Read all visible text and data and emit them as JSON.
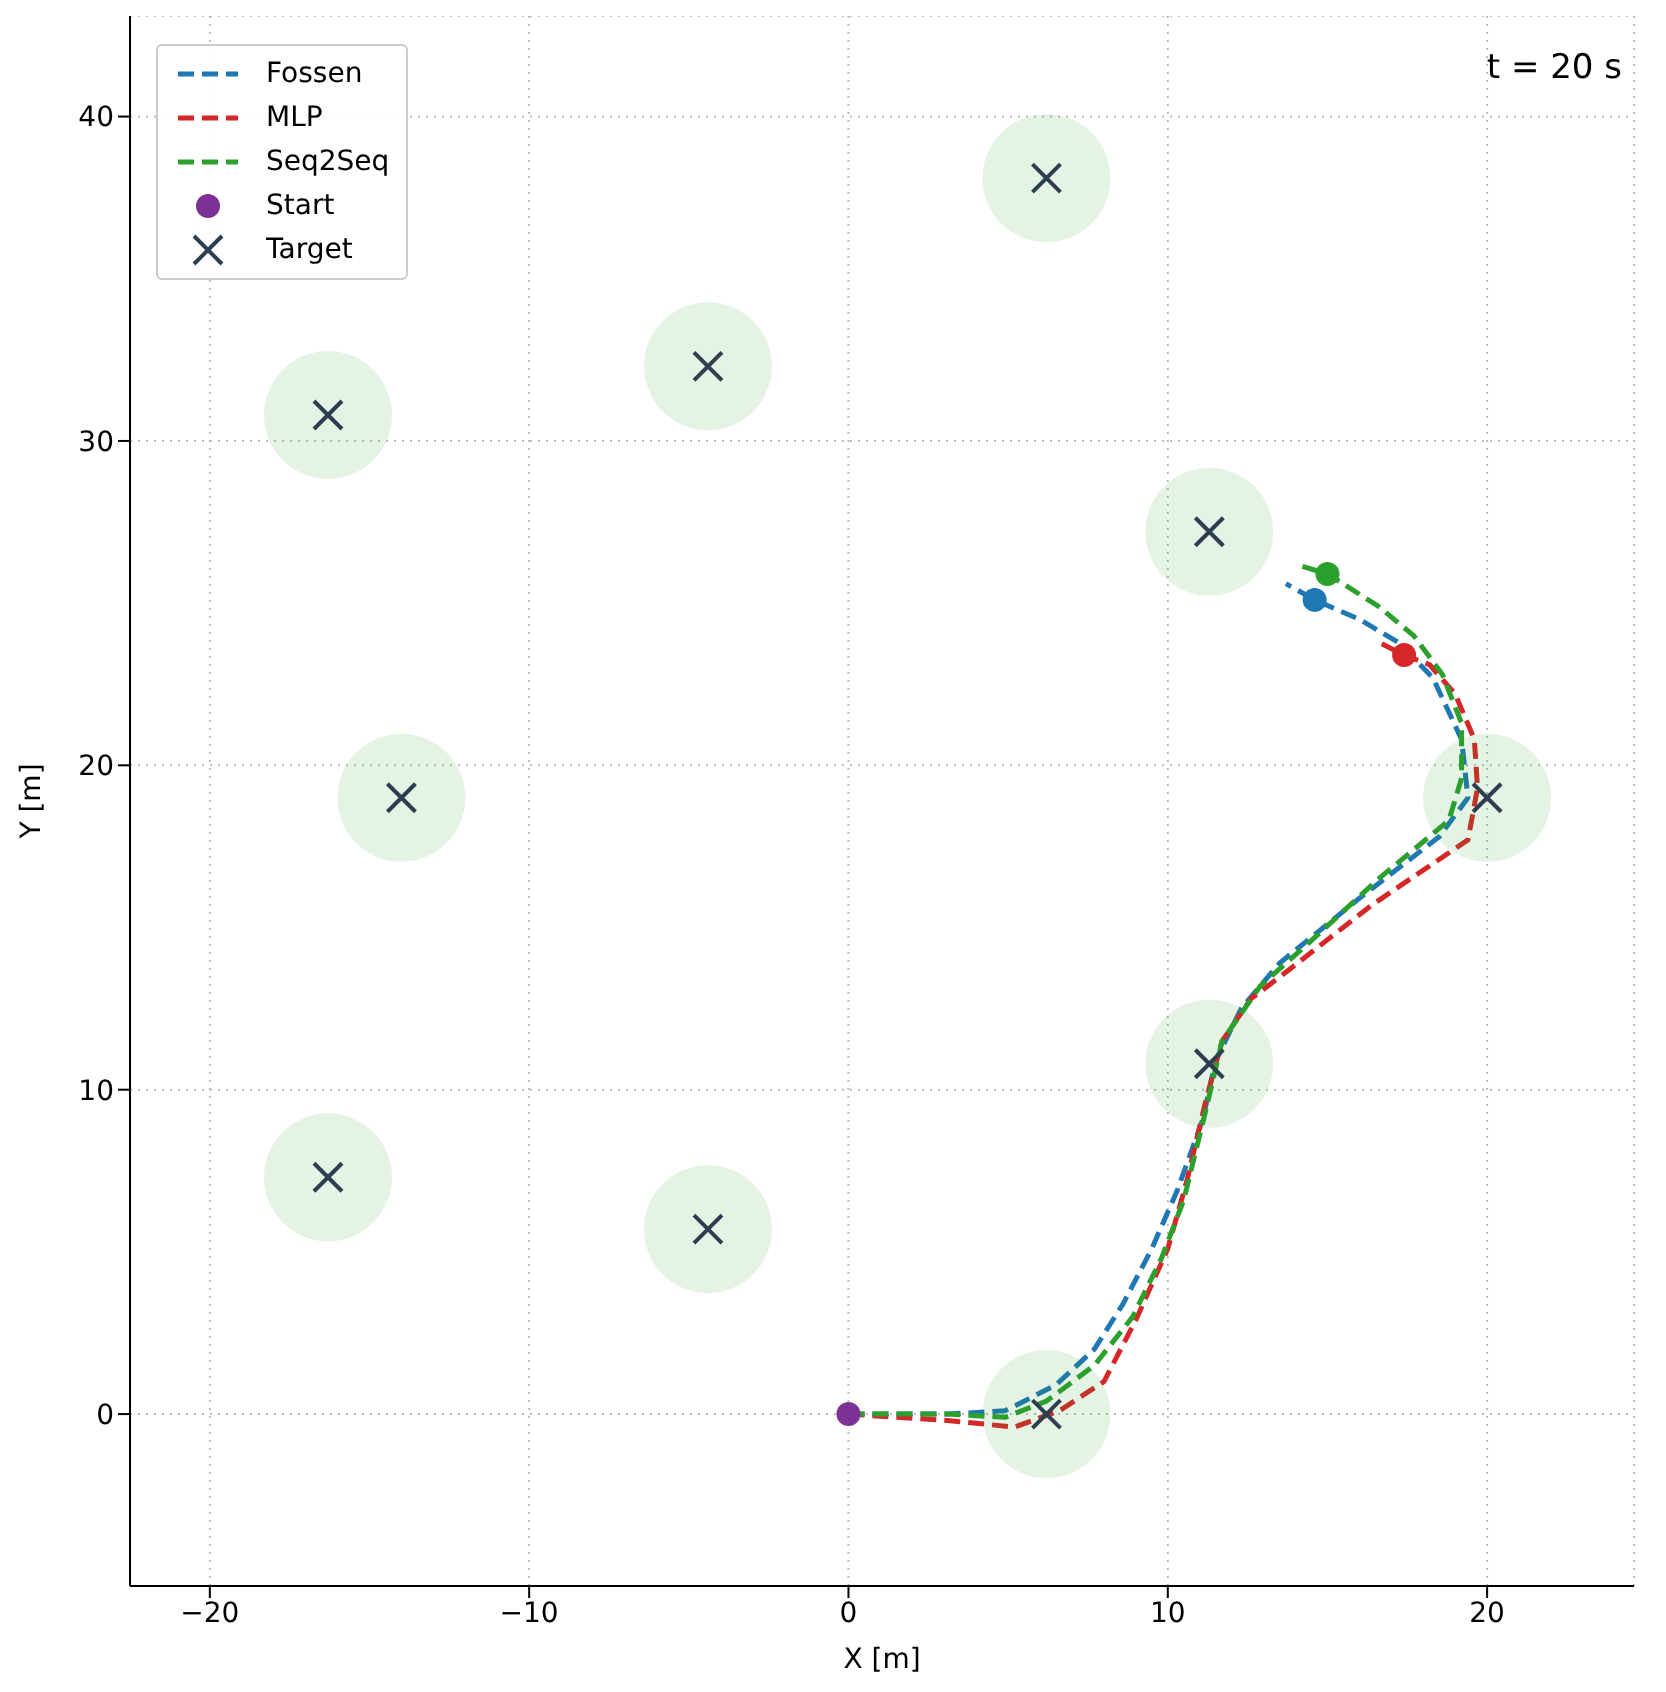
{
  "chart_data": {
    "type": "line",
    "xlabel": "X [m]",
    "ylabel": "Y [m]",
    "annotations": [
      "t = 20 s"
    ],
    "xlim": [
      -22.5,
      24.6
    ],
    "ylim": [
      -5.3,
      43.1
    ],
    "xticks": [
      {
        "value": -20,
        "label": "−20"
      },
      {
        "value": -10,
        "label": "−10"
      },
      0,
      10,
      20
    ],
    "yticks": [
      0,
      10,
      20,
      30,
      40
    ],
    "grid": true,
    "legend": "top left",
    "line_style": "dashed",
    "series": [
      {
        "name": "Fossen",
        "color": "#1f77b4",
        "x": [
          0,
          3.1,
          4.9,
          6.5,
          7.7,
          8.6,
          9.5,
          10.3,
          11.1,
          11.5,
          12.3,
          13.5,
          16,
          18.5,
          19.4,
          19.2,
          18.3,
          17.2,
          16,
          14.6,
          13.7
        ],
        "values": [
          0,
          0,
          0.1,
          0.9,
          2,
          3.4,
          5.1,
          6.9,
          9.1,
          10.9,
          12.5,
          13.9,
          15.9,
          17.8,
          19,
          20.8,
          22.7,
          23.8,
          24.5,
          25.1,
          25.6
        ]
      },
      {
        "name": "MLP",
        "color": "#d62728",
        "x": [
          0,
          3.1,
          5.2,
          6.6,
          8,
          9,
          10,
          10.6,
          11.2,
          11.7,
          12.6,
          13.8,
          16.4,
          19.4,
          19.7,
          19.6,
          19,
          18.2,
          17.4,
          16.6
        ],
        "values": [
          0,
          -0.2,
          -0.4,
          0.1,
          1,
          2.9,
          5.1,
          7.2,
          9.7,
          11.5,
          12.8,
          13.7,
          15.7,
          17.7,
          19.3,
          20.8,
          22.2,
          23.1,
          23.4,
          23.8
        ]
      },
      {
        "name": "Seq2Seq",
        "color": "#2ca02c",
        "x": [
          0,
          3.1,
          4.9,
          6.2,
          7.7,
          8.9,
          9.8,
          10.5,
          11.2,
          11.7,
          12.9,
          14.5,
          16.6,
          18.8,
          19.2,
          19.2,
          18.6,
          17.7,
          16.6,
          15,
          14
        ],
        "values": [
          0,
          0,
          -0.1,
          0.4,
          1.5,
          3,
          4.8,
          6.6,
          9.4,
          11.5,
          13.2,
          14.6,
          16.5,
          18.3,
          19.6,
          21.3,
          22.8,
          24,
          24.9,
          25.9,
          26.2
        ]
      },
      {
        "type": "scatter",
        "marker": "circle",
        "color": "#1f77b4",
        "x": [
          14.6
        ],
        "values": [
          25.1
        ]
      },
      {
        "type": "scatter",
        "marker": "circle",
        "color": "#d62728",
        "x": [
          17.4
        ],
        "values": [
          23.4
        ]
      },
      {
        "type": "scatter",
        "marker": "circle",
        "color": "#2ca02c",
        "x": [
          15
        ],
        "values": [
          25.9
        ]
      },
      {
        "name": "Start",
        "type": "scatter",
        "marker": "circle",
        "color": "#7b3294",
        "x": [
          0
        ],
        "values": [
          0
        ]
      },
      {
        "name": "Target",
        "type": "scatter",
        "marker": "cross",
        "color": "#2c3e50",
        "x": [
          6.2,
          11.3,
          20,
          11.3,
          6.2,
          -4.4,
          -16.3,
          -14,
          -16.3,
          -4.4
        ],
        "values": [
          0,
          10.8,
          19,
          27.2,
          38.1,
          32.3,
          30.8,
          19,
          7.3,
          5.7
        ]
      }
    ]
  }
}
